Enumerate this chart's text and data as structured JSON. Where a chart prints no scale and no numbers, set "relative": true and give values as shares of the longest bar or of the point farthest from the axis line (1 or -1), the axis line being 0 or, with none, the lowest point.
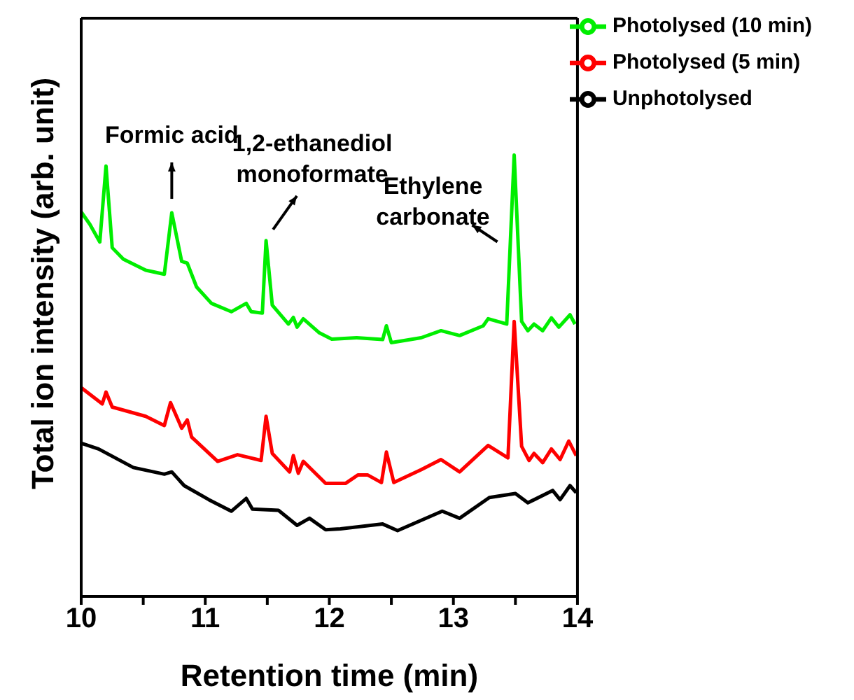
{
  "chart_data": {
    "type": "line",
    "relative": true,
    "xlabel": "Retention time (min)",
    "ylabel": "Total ion intensity (arb. unit)",
    "xlim": [
      10,
      14
    ],
    "xticks": [
      10,
      {
        "value": 10.5,
        "label": null
      },
      11,
      {
        "value": 11.5,
        "label": null
      },
      12,
      {
        "value": 12.5,
        "label": null
      },
      13,
      {
        "value": 13.5,
        "label": null
      },
      14
    ],
    "legend": "top right",
    "line_style": "solid",
    "marker": "none",
    "series": [
      {
        "name": "Photolysed (10 min)",
        "color": "#00ee00",
        "x": [
          10,
          10.07,
          10.15,
          10.2,
          10.25,
          10.34,
          10.52,
          10.67,
          10.73,
          10.81,
          10.855,
          10.93,
          11.05,
          11.21,
          11.33,
          11.37,
          11.46,
          11.49,
          11.54,
          11.67,
          11.71,
          11.74,
          11.79,
          11.92,
          12.02,
          12.22,
          12.43,
          12.46,
          12.5,
          12.74,
          12.9,
          13.05,
          13.24,
          13.28,
          13.43,
          13.49,
          13.55,
          13.6,
          13.65,
          13.72,
          13.79,
          13.85,
          13.94,
          13.98
        ],
        "values": [
          0.871,
          0.843,
          0.803,
          0.975,
          0.79,
          0.764,
          0.739,
          0.73,
          0.869,
          0.759,
          0.755,
          0.701,
          0.664,
          0.645,
          0.664,
          0.645,
          0.642,
          0.806,
          0.66,
          0.617,
          0.632,
          0.61,
          0.629,
          0.597,
          0.583,
          0.586,
          0.582,
          0.613,
          0.575,
          0.586,
          0.602,
          0.591,
          0.613,
          0.629,
          0.617,
          1,
          0.623,
          0.602,
          0.617,
          0.602,
          0.631,
          0.61,
          0.638,
          0.617
        ]
      },
      {
        "name": "Photolysed (5 min)",
        "color": "#ff0000",
        "x": [
          10,
          10.17,
          10.2,
          10.25,
          10.52,
          10.67,
          10.72,
          10.81,
          10.855,
          10.89,
          11.1,
          11.26,
          11.45,
          11.49,
          11.54,
          11.68,
          11.71,
          11.75,
          11.79,
          11.97,
          12.13,
          12.23,
          12.31,
          12.42,
          12.46,
          12.52,
          12.74,
          12.9,
          13.05,
          13.28,
          13.44,
          13.49,
          13.55,
          13.61,
          13.65,
          13.72,
          13.79,
          13.86,
          13.93,
          13.99
        ],
        "values": [
          0.473,
          0.436,
          0.463,
          0.429,
          0.408,
          0.387,
          0.439,
          0.381,
          0.4,
          0.361,
          0.306,
          0.321,
          0.308,
          0.408,
          0.324,
          0.282,
          0.319,
          0.279,
          0.306,
          0.256,
          0.256,
          0.275,
          0.275,
          0.258,
          0.327,
          0.258,
          0.287,
          0.31,
          0.282,
          0.342,
          0.314,
          0.623,
          0.34,
          0.308,
          0.324,
          0.303,
          0.334,
          0.31,
          0.352,
          0.319
        ]
      },
      {
        "name": "Unphotolysed",
        "color": "#000000",
        "x": [
          10,
          10.14,
          10.42,
          10.67,
          10.73,
          10.83,
          11.03,
          11.21,
          11.33,
          11.38,
          11.59,
          11.74,
          11.84,
          11.97,
          12.09,
          12.43,
          12.55,
          12.91,
          13.05,
          13.29,
          13.5,
          13.6,
          13.8,
          13.86,
          13.94,
          13.99
        ],
        "values": [
          0.347,
          0.334,
          0.292,
          0.277,
          0.282,
          0.251,
          0.219,
          0.193,
          0.222,
          0.198,
          0.195,
          0.161,
          0.177,
          0.151,
          0.153,
          0.164,
          0.149,
          0.193,
          0.177,
          0.224,
          0.233,
          0.212,
          0.24,
          0.219,
          0.251,
          0.235
        ]
      }
    ],
    "annotations": [
      {
        "text": "Formic acid",
        "x": 10.73,
        "y": 0.869
      },
      {
        "text": "1,2-ethanediol\nmonoformate",
        "x": 11.49,
        "y": 0.806
      },
      {
        "text": "Ethylene\ncarbonate",
        "x": 13.49,
        "y": 1
      }
    ]
  }
}
